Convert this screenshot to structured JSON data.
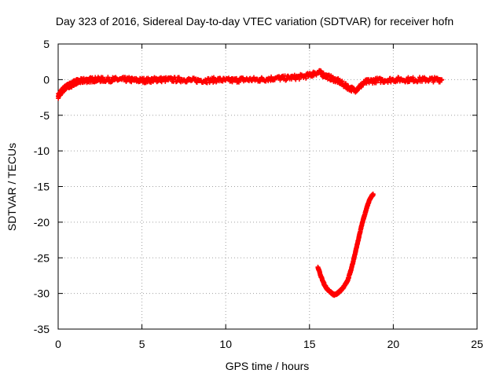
{
  "chart_data": {
    "type": "scatter",
    "title": "Day 323 of 2016, Sidereal Day-to-day VTEC variation (SDTVAR) for receiver hofn",
    "xlabel": "GPS time / hours",
    "ylabel": "SDTVAR / TECUs",
    "xlim": [
      0,
      25
    ],
    "ylim": [
      -35,
      5
    ],
    "xticks": [
      0,
      5,
      10,
      15,
      20,
      25
    ],
    "yticks": [
      -35,
      -30,
      -25,
      -20,
      -15,
      -10,
      -5,
      0,
      5
    ],
    "grid": true,
    "marker_color": "#ff0000",
    "series": [
      {
        "name": "main",
        "x": [
          0.0,
          0.1,
          0.2,
          0.3,
          0.4,
          0.5,
          0.6,
          0.7,
          0.8,
          0.9,
          1.0,
          1.1,
          1.2,
          1.4,
          1.6,
          1.8,
          2.0,
          2.3,
          2.6,
          3.0,
          3.4,
          3.8,
          4.2,
          4.6,
          5.0,
          5.4,
          5.8,
          6.0,
          6.5,
          7.0,
          7.5,
          8.0,
          8.5,
          9.0,
          9.5,
          10.0,
          10.5,
          11.0,
          11.5,
          12.0,
          12.5,
          13.0,
          13.5,
          14.0,
          14.5,
          15.0,
          15.3,
          15.6,
          15.9,
          16.2,
          16.5,
          16.8,
          17.1,
          17.4,
          17.7,
          18.0,
          18.3,
          18.6,
          19.0,
          19.5,
          20.0,
          20.5,
          21.0,
          21.5,
          22.0,
          22.5,
          22.9
        ],
        "y": [
          -2.3,
          -2.0,
          -1.7,
          -1.4,
          -1.2,
          -1.0,
          -0.9,
          -0.8,
          -0.7,
          -0.5,
          -0.4,
          -0.3,
          -0.3,
          -0.2,
          -0.1,
          -0.1,
          0.0,
          0.0,
          0.0,
          0.0,
          0.0,
          0.0,
          0.0,
          -0.1,
          -0.1,
          -0.1,
          0.0,
          0.0,
          0.0,
          0.0,
          0.0,
          -0.1,
          -0.1,
          -0.1,
          0.0,
          -0.1,
          -0.1,
          0.0,
          0.0,
          0.0,
          0.1,
          0.2,
          0.2,
          0.3,
          0.4,
          0.6,
          0.9,
          1.0,
          0.6,
          0.3,
          0.0,
          -0.3,
          -0.8,
          -1.2,
          -1.5,
          -1.0,
          -0.4,
          -0.2,
          -0.1,
          -0.1,
          0.0,
          0.0,
          0.0,
          0.0,
          0.0,
          0.0,
          0.0
        ]
      },
      {
        "name": "lower-arc",
        "x": [
          15.5,
          15.6,
          15.7,
          15.8,
          15.9,
          16.0,
          16.1,
          16.2,
          16.3,
          16.4,
          16.5,
          16.6,
          16.7,
          16.8,
          16.9,
          17.0,
          17.1,
          17.2,
          17.3,
          17.4,
          17.5,
          17.6,
          17.7,
          17.8,
          17.9,
          18.0,
          18.1,
          18.2,
          18.3,
          18.4,
          18.5,
          18.6,
          18.7,
          18.8
        ],
        "y": [
          -26.3,
          -27.0,
          -27.7,
          -28.3,
          -28.8,
          -29.2,
          -29.5,
          -29.7,
          -29.9,
          -30.1,
          -30.2,
          -30.1,
          -29.9,
          -29.7,
          -29.5,
          -29.2,
          -28.9,
          -28.5,
          -28.0,
          -27.3,
          -26.5,
          -25.6,
          -24.6,
          -23.6,
          -22.6,
          -21.6,
          -20.6,
          -19.7,
          -18.9,
          -18.1,
          -17.4,
          -16.8,
          -16.4,
          -16.1
        ]
      }
    ]
  }
}
